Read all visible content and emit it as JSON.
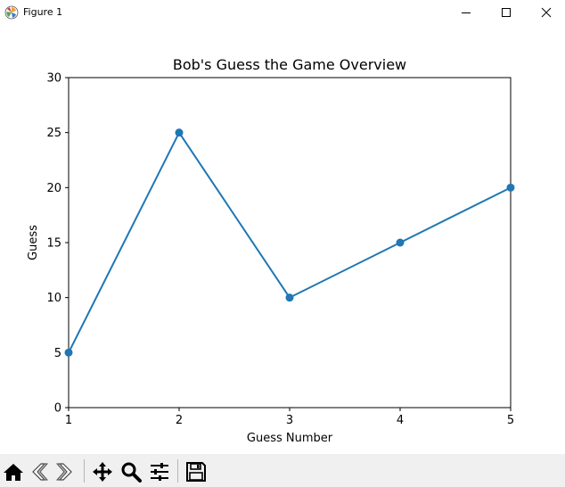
{
  "window": {
    "title": "Figure 1",
    "minimize_icon": "minimize-icon",
    "maximize_icon": "maximize-icon",
    "close_icon": "close-icon"
  },
  "toolbar": {
    "buttons": [
      {
        "name": "home-button",
        "icon": "home-icon"
      },
      {
        "name": "back-button",
        "icon": "back-arrow-icon"
      },
      {
        "name": "forward-button",
        "icon": "forward-arrow-icon"
      },
      {
        "name": "pan-button",
        "icon": "move-icon"
      },
      {
        "name": "zoom-button",
        "icon": "magnifier-icon"
      },
      {
        "name": "configure-subplots-button",
        "icon": "sliders-icon"
      },
      {
        "name": "save-button",
        "icon": "floppy-disk-icon"
      }
    ]
  },
  "chart_data": {
    "type": "line",
    "title": "Bob's Guess the Game Overview",
    "xlabel": "Guess Number",
    "ylabel": "Guess",
    "x": [
      1,
      2,
      3,
      4,
      5
    ],
    "series": [
      {
        "values": [
          5,
          25,
          10,
          15,
          20
        ],
        "color": "#1f77b4",
        "marker": "circle"
      }
    ],
    "xlim": [
      1,
      5
    ],
    "ylim": [
      0,
      30
    ],
    "xticks": [
      "1",
      "2",
      "3",
      "4",
      "5"
    ],
    "yticks": [
      "0",
      "5",
      "10",
      "15",
      "20",
      "25",
      "30"
    ],
    "grid": false
  }
}
